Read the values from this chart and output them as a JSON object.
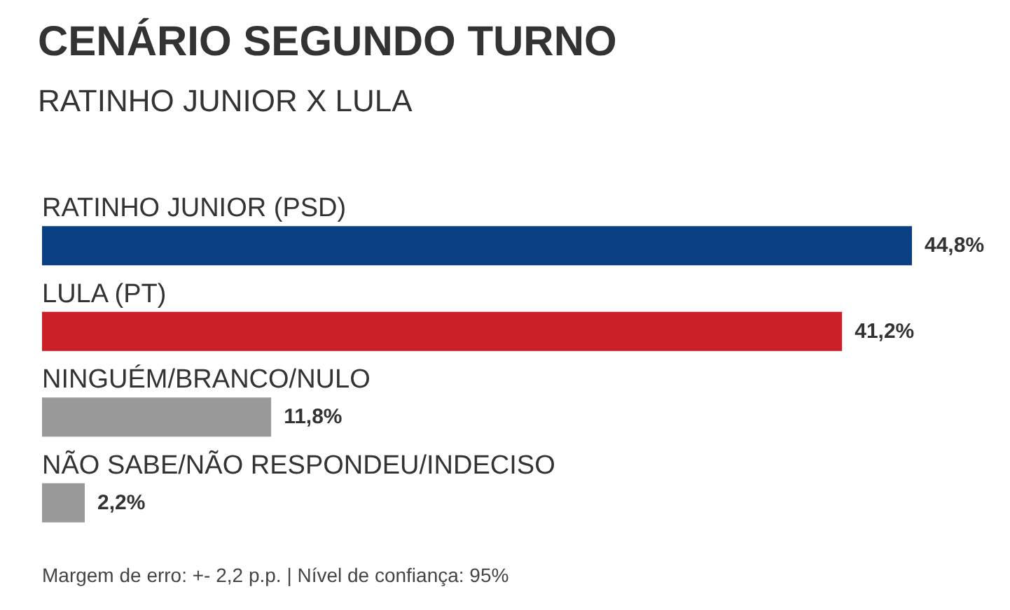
{
  "chart_data": {
    "type": "bar",
    "orientation": "horizontal",
    "title": "CENÁRIO SEGUNDO TURNO",
    "subtitle": "RATINHO JUNIOR X LULA",
    "categories": [
      "RATINHO JUNIOR (PSD)",
      "LULA (PT)",
      "NINGUÉM/BRANCO/NULO",
      "NÃO SABE/NÃO RESPONDEU/INDECISO"
    ],
    "values": [
      44.8,
      41.2,
      11.8,
      2.2
    ],
    "colors": [
      "#0b3f84",
      "#cc2029",
      "#999999",
      "#999999"
    ],
    "value_labels": [
      "44,8%",
      "41,2%",
      "11,8%",
      "2,2%"
    ],
    "annotations": [
      "Margem de erro: +- 2,2 p.p. | Nível de confiança: 95%"
    ]
  }
}
